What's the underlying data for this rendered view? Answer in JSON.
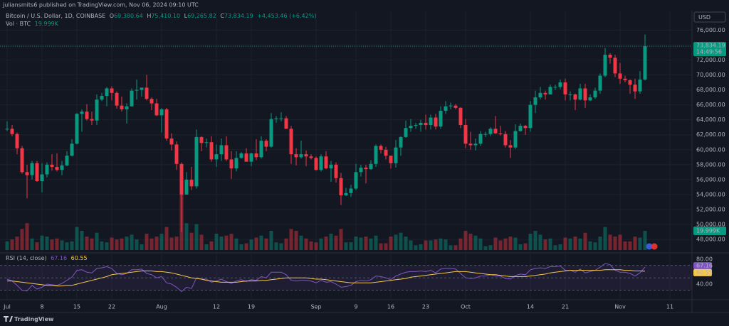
{
  "header": {
    "publisher": "juliansmits6 published on TradingView.com, Nov 06, 2024 09:10 UTC",
    "footer": "TradingView"
  },
  "chart_data": {
    "type": "candlestick",
    "title": "Bitcoin / U.S. Dollar, 1D, COINBASE",
    "ohlc_labels": [
      "O",
      "H",
      "L",
      "C"
    ],
    "last_values": [
      "69,380.64",
      "75,410.10",
      "69,265.82",
      "73,834.19"
    ],
    "change": "+4,453.46 (+6.42%)",
    "currency": "USD",
    "countdown": "14:49:56",
    "up_color": "#089981",
    "down_color": "#f23645",
    "x": [
      "2024-07-01",
      "2024-07-02",
      "2024-07-03",
      "2024-07-04",
      "2024-07-05",
      "2024-07-06",
      "2024-07-07",
      "2024-07-08",
      "2024-07-09",
      "2024-07-10",
      "2024-07-11",
      "2024-07-12",
      "2024-07-13",
      "2024-07-14",
      "2024-07-15",
      "2024-07-16",
      "2024-07-17",
      "2024-07-18",
      "2024-07-19",
      "2024-07-20",
      "2024-07-21",
      "2024-07-22",
      "2024-07-23",
      "2024-07-24",
      "2024-07-25",
      "2024-07-26",
      "2024-07-27",
      "2024-07-28",
      "2024-07-29",
      "2024-07-30",
      "2024-07-31",
      "2024-08-01",
      "2024-08-02",
      "2024-08-03",
      "2024-08-04",
      "2024-08-05",
      "2024-08-06",
      "2024-08-07",
      "2024-08-08",
      "2024-08-09",
      "2024-08-10",
      "2024-08-11",
      "2024-08-12",
      "2024-08-13",
      "2024-08-14",
      "2024-08-15",
      "2024-08-16",
      "2024-08-17",
      "2024-08-18",
      "2024-08-19",
      "2024-08-20",
      "2024-08-21",
      "2024-08-22",
      "2024-08-23",
      "2024-08-24",
      "2024-08-25",
      "2024-08-26",
      "2024-08-27",
      "2024-08-28",
      "2024-08-29",
      "2024-08-30",
      "2024-08-31",
      "2024-09-01",
      "2024-09-02",
      "2024-09-03",
      "2024-09-04",
      "2024-09-05",
      "2024-09-06",
      "2024-09-07",
      "2024-09-08",
      "2024-09-09",
      "2024-09-10",
      "2024-09-11",
      "2024-09-12",
      "2024-09-13",
      "2024-09-14",
      "2024-09-15",
      "2024-09-16",
      "2024-09-17",
      "2024-09-18",
      "2024-09-19",
      "2024-09-20",
      "2024-09-21",
      "2024-09-22",
      "2024-09-23",
      "2024-09-24",
      "2024-09-25",
      "2024-09-26",
      "2024-09-27",
      "2024-09-28",
      "2024-09-29",
      "2024-09-30",
      "2024-10-01",
      "2024-10-02",
      "2024-10-03",
      "2024-10-04",
      "2024-10-05",
      "2024-10-06",
      "2024-10-07",
      "2024-10-08",
      "2024-10-09",
      "2024-10-10",
      "2024-10-11",
      "2024-10-12",
      "2024-10-13",
      "2024-10-14",
      "2024-10-15",
      "2024-10-16",
      "2024-10-17",
      "2024-10-18",
      "2024-10-19",
      "2024-10-20",
      "2024-10-21",
      "2024-10-22",
      "2024-10-23",
      "2024-10-24",
      "2024-10-25",
      "2024-10-26",
      "2024-10-27",
      "2024-10-28",
      "2024-10-29",
      "2024-10-30",
      "2024-10-31",
      "2024-11-01",
      "2024-11-02",
      "2024-11-03",
      "2024-11-04",
      "2024-11-05",
      "2024-11-06"
    ],
    "open": [
      62700,
      62800,
      62100,
      60200,
      57000,
      56600,
      58200,
      55800,
      56700,
      58000,
      57700,
      57300,
      57900,
      59200,
      60800,
      64800,
      65100,
      64100,
      63900,
      66700,
      67200,
      68200,
      67600,
      65900,
      65400,
      65800,
      67900,
      68000,
      68300,
      66800,
      66200,
      64600,
      65400,
      61500,
      60700,
      58100,
      54000,
      56000,
      55100,
      61700,
      60900,
      61000,
      58700,
      59400,
      60600,
      58700,
      57500,
      58900,
      59500,
      58400,
      59500,
      59000,
      61200,
      60400,
      64100,
      64200,
      64200,
      62800,
      59400,
      59000,
      59400,
      59100,
      58900,
      57300,
      59100,
      57500,
      58000,
      56200,
      53900,
      54200,
      54800,
      57000,
      57600,
      57400,
      58100,
      60500,
      60000,
      59200,
      58200,
      60300,
      61700,
      62900,
      63200,
      63300,
      63600,
      63300,
      64300,
      63100,
      65200,
      65800,
      65900,
      65600,
      63300,
      60800,
      60600,
      60800,
      62100,
      62100,
      62800,
      62200,
      62100,
      60600,
      60300,
      62500,
      63200,
      62900,
      66000,
      67000,
      67600,
      67400,
      68400,
      68400,
      69000,
      67400,
      67400,
      66700,
      68200,
      66600,
      67000,
      67900,
      69900,
      72700,
      72300,
      70200,
      69500,
      69300,
      68700,
      67800,
      69380.64
    ],
    "high": [
      63800,
      63300,
      62300,
      60500,
      58000,
      58500,
      58500,
      58200,
      58300,
      59400,
      59500,
      58500,
      59800,
      61400,
      64900,
      65400,
      66100,
      65100,
      67400,
      67600,
      68400,
      68500,
      67800,
      67100,
      66200,
      68200,
      69400,
      68300,
      70000,
      67000,
      66800,
      65600,
      65600,
      62200,
      61100,
      58300,
      57000,
      57700,
      62700,
      61800,
      61500,
      61800,
      60700,
      61500,
      61800,
      59800,
      59800,
      59700,
      60200,
      59600,
      61400,
      61800,
      61400,
      64900,
      64500,
      65000,
      64500,
      63200,
      60200,
      61200,
      59900,
      59400,
      59100,
      59400,
      59800,
      58500,
      58300,
      56900,
      54900,
      55300,
      58100,
      58000,
      58000,
      58600,
      60700,
      60700,
      60400,
      59200,
      61300,
      61800,
      63900,
      64100,
      63600,
      64000,
      64700,
      64700,
      64800,
      65800,
      66500,
      66300,
      66100,
      65700,
      64100,
      62400,
      61500,
      62500,
      62400,
      63000,
      64500,
      63200,
      62500,
      61300,
      63400,
      63500,
      63300,
      66500,
      67900,
      68400,
      67900,
      68700,
      68700,
      69400,
      69500,
      67800,
      67500,
      68800,
      68800,
      67400,
      68300,
      70200,
      73600,
      72900,
      72700,
      71600,
      69900,
      69400,
      69500,
      70500,
      75410.1
    ],
    "low": [
      62500,
      61800,
      59400,
      56800,
      53500,
      56000,
      55700,
      54300,
      56300,
      57200,
      57100,
      56600,
      57800,
      59100,
      60700,
      62400,
      63900,
      63300,
      63300,
      66500,
      65800,
      66600,
      65500,
      65100,
      63500,
      65800,
      66700,
      67100,
      66600,
      65300,
      64500,
      62300,
      61200,
      59900,
      57300,
      49000,
      54000,
      54600,
      54800,
      59800,
      60300,
      58400,
      57700,
      58500,
      58500,
      56100,
      57100,
      58800,
      58400,
      57800,
      58600,
      58800,
      59800,
      60300,
      63600,
      63800,
      62800,
      58100,
      57900,
      58800,
      57800,
      58700,
      57200,
      57100,
      57400,
      55700,
      55600,
      52600,
      53800,
      53700,
      54600,
      56400,
      55500,
      57300,
      57700,
      59500,
      58700,
      57500,
      57600,
      59200,
      61600,
      62400,
      62800,
      62400,
      62700,
      62700,
      62700,
      62800,
      64800,
      65400,
      65400,
      62900,
      60200,
      60000,
      59900,
      60500,
      61700,
      61800,
      62100,
      61900,
      60300,
      58900,
      60100,
      62400,
      62000,
      62400,
      64900,
      66700,
      66700,
      67400,
      68000,
      68100,
      66600,
      66600,
      65300,
      66600,
      65600,
      66500,
      66800,
      67500,
      69700,
      71500,
      69700,
      68800,
      69000,
      67500,
      66800,
      67500,
      69265.82
    ],
    "close": [
      62800,
      62100,
      60200,
      57000,
      56600,
      58200,
      55800,
      56700,
      58000,
      57700,
      57300,
      57900,
      59200,
      60800,
      64800,
      65100,
      64100,
      63900,
      66700,
      67200,
      68200,
      67600,
      65900,
      65400,
      65800,
      67900,
      68000,
      68300,
      66800,
      66200,
      64600,
      65400,
      61500,
      60700,
      58100,
      54000,
      56000,
      55100,
      61700,
      60900,
      61000,
      58700,
      59400,
      60600,
      58700,
      57500,
      58900,
      59500,
      58400,
      59500,
      59000,
      61200,
      60400,
      64100,
      64200,
      64200,
      62800,
      59400,
      59000,
      59400,
      59100,
      58900,
      57300,
      59100,
      57500,
      58000,
      56200,
      53900,
      54200,
      54800,
      57000,
      57600,
      57400,
      58100,
      60500,
      60000,
      59200,
      58200,
      60300,
      61700,
      62900,
      63200,
      63300,
      63600,
      63300,
      64300,
      63100,
      65200,
      65800,
      65900,
      65600,
      63300,
      60800,
      60600,
      60800,
      62100,
      62100,
      62800,
      62200,
      62100,
      60600,
      60300,
      62500,
      63200,
      62900,
      66000,
      67000,
      67600,
      67400,
      68400,
      68400,
      69000,
      67400,
      67400,
      66700,
      68200,
      66600,
      67000,
      67900,
      69900,
      72700,
      72300,
      70200,
      69500,
      69300,
      68700,
      67800,
      69380.64,
      73834.19
    ],
    "ylim": [
      46300,
      78600
    ],
    "yticks": [
      {
        "value": 48000,
        "label": "48,000.00"
      },
      {
        "value": 50000,
        "label": "50,000.00"
      },
      {
        "value": 52000,
        "label": "52,000.00"
      },
      {
        "value": 54000,
        "label": "54,000.00"
      },
      {
        "value": 56000,
        "label": "56,000.00"
      },
      {
        "value": 58000,
        "label": "58,000.00"
      },
      {
        "value": 60000,
        "label": "60,000.00"
      },
      {
        "value": 62000,
        "label": "62,000.00"
      },
      {
        "value": 64000,
        "label": "64,000.00"
      },
      {
        "value": 66000,
        "label": "66,000.00"
      },
      {
        "value": 68000,
        "label": "68,000.00"
      },
      {
        "value": 70000,
        "label": "70,000.00"
      },
      {
        "value": 72000,
        "label": "72,000.00"
      },
      {
        "value": 74000,
        "label": "74,000.00"
      },
      {
        "value": 76000,
        "label": "76,000.00"
      }
    ],
    "xticks": [
      {
        "value": "2024-07-01",
        "label": "Jul"
      },
      {
        "value": "2024-07-08",
        "label": "8"
      },
      {
        "value": "2024-07-15",
        "label": "15"
      },
      {
        "value": "2024-07-22",
        "label": "22"
      },
      {
        "value": "2024-08-01",
        "label": "Aug"
      },
      {
        "value": "2024-08-12",
        "label": "12"
      },
      {
        "value": "2024-08-19",
        "label": "19"
      },
      {
        "value": "2024-09-01",
        "label": "Sep"
      },
      {
        "value": "2024-09-09",
        "label": "9"
      },
      {
        "value": "2024-09-16",
        "label": "16"
      },
      {
        "value": "2024-09-23",
        "label": "23"
      },
      {
        "value": "2024-10-01",
        "label": "Oct"
      },
      {
        "value": "2024-10-14",
        "label": "14"
      },
      {
        "value": "2024-10-21",
        "label": "21"
      },
      {
        "value": "2024-11-01",
        "label": "Nov"
      },
      {
        "value": "2024-11-11",
        "label": "11"
      }
    ],
    "grid": true,
    "volume": {
      "name": "Vol · BTC",
      "last_label": "19.999K",
      "values": [
        9000,
        11000,
        14000,
        22000,
        28000,
        12000,
        8000,
        15000,
        14000,
        11000,
        12000,
        10000,
        8000,
        9000,
        24000,
        20000,
        14000,
        12000,
        18000,
        9000,
        8000,
        13000,
        11000,
        12000,
        14000,
        16000,
        11000,
        6000,
        17000,
        12000,
        14000,
        17000,
        24000,
        13000,
        14000,
        67000,
        28000,
        18000,
        27000,
        16000,
        6000,
        9000,
        17000,
        14000,
        15000,
        17000,
        12000,
        6000,
        7000,
        11000,
        13000,
        15000,
        12000,
        20000,
        8000,
        7000,
        12000,
        22000,
        20000,
        15000,
        12000,
        9000,
        8000,
        12000,
        14000,
        17000,
        15000,
        22000,
        8000,
        8000,
        14000,
        13000,
        14000,
        12000,
        15000,
        7000,
        7000,
        14000,
        16000,
        18000,
        14000,
        10000,
        5000,
        6000,
        10000,
        10000,
        11000,
        12000,
        11000,
        5000,
        5000,
        12000,
        20000,
        17000,
        15000,
        12000,
        4000,
        5000,
        13000,
        10000,
        12000,
        14000,
        13000,
        6000,
        7000,
        17000,
        20000,
        16000,
        11000,
        12000,
        5000,
        6000,
        13000,
        12000,
        14000,
        12000,
        18000,
        9000,
        8000,
        14000,
        24000,
        16000,
        14000,
        16000,
        9000,
        9000,
        14000,
        13000,
        19999
      ]
    },
    "rsi": {
      "title": "RSI (14, close)",
      "ylim": [
        15,
        90
      ],
      "yticks": [
        {
          "value": 80,
          "label": "80.00"
        },
        {
          "value": 40,
          "label": "40.00"
        }
      ],
      "bands": [
        70,
        50,
        30
      ],
      "series": [
        {
          "color": "#7e57c2",
          "values": [
            48,
            45,
            38,
            30,
            29,
            38,
            32,
            35,
            40,
            39,
            38,
            41,
            46,
            51,
            62,
            63,
            59,
            58,
            65,
            66,
            68,
            65,
            57,
            55,
            57,
            63,
            63,
            64,
            57,
            55,
            50,
            52,
            42,
            40,
            35,
            28,
            35,
            33,
            50,
            48,
            48,
            43,
            45,
            48,
            44,
            41,
            45,
            47,
            44,
            47,
            46,
            52,
            50,
            59,
            59,
            59,
            55,
            46,
            45,
            46,
            46,
            45,
            42,
            46,
            43,
            44,
            40,
            35,
            36,
            38,
            44,
            46,
            45,
            47,
            53,
            52,
            50,
            47,
            53,
            56,
            59,
            60,
            60,
            61,
            60,
            62,
            58,
            64,
            65,
            65,
            64,
            57,
            50,
            49,
            50,
            53,
            53,
            55,
            53,
            53,
            49,
            48,
            54,
            56,
            55,
            63,
            65,
            66,
            65,
            68,
            68,
            69,
            62,
            62,
            59,
            64,
            58,
            60,
            62,
            67,
            73,
            71,
            62,
            59,
            59,
            57,
            53,
            58,
            67.16
          ]
        },
        {
          "color": "#f7c948",
          "values": [
            45,
            45,
            44,
            43,
            42,
            41,
            40,
            39,
            38,
            38,
            37,
            37,
            38,
            38,
            40,
            42,
            44,
            46,
            48,
            50,
            52,
            55,
            56,
            57,
            58,
            59,
            60,
            61,
            61,
            61,
            60,
            60,
            59,
            58,
            56,
            54,
            52,
            50,
            49,
            48,
            46,
            45,
            44,
            43,
            43,
            43,
            43,
            44,
            45,
            45,
            45,
            46,
            46,
            47,
            48,
            49,
            50,
            50,
            50,
            50,
            50,
            49,
            48,
            48,
            47,
            46,
            45,
            44,
            43,
            42,
            42,
            42,
            42,
            42,
            43,
            44,
            45,
            46,
            47,
            48,
            49,
            51,
            52,
            53,
            54,
            55,
            56,
            57,
            58,
            59,
            60,
            60,
            60,
            59,
            58,
            57,
            56,
            55,
            55,
            54,
            53,
            52,
            52,
            52,
            52,
            53,
            54,
            55,
            56,
            58,
            59,
            60,
            61,
            62,
            62,
            62,
            62,
            62,
            62,
            62,
            63,
            63,
            63,
            63,
            62,
            62,
            61,
            61,
            60.55
          ]
        }
      ]
    }
  }
}
